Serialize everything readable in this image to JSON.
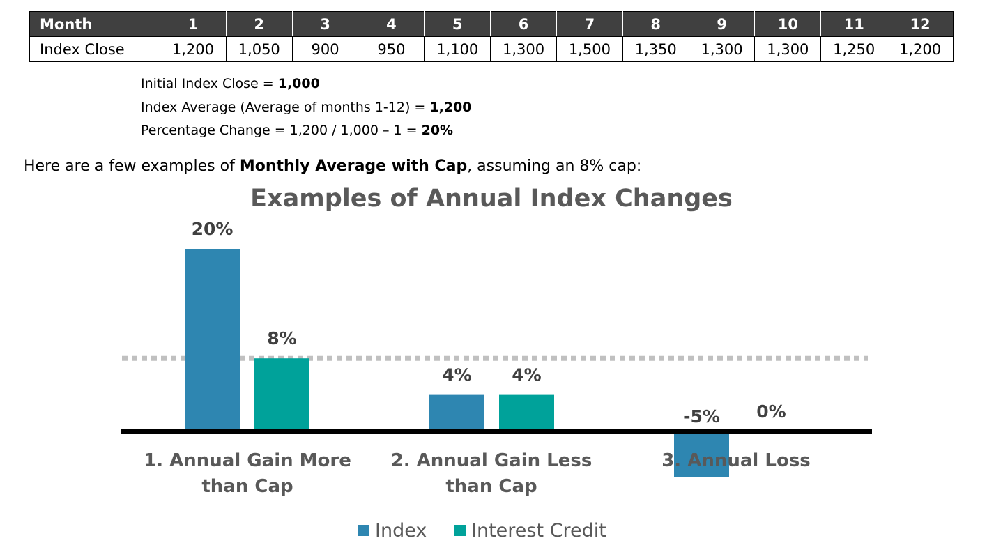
{
  "table": {
    "header_label": "Month",
    "months": [
      "1",
      "2",
      "3",
      "4",
      "5",
      "6",
      "7",
      "8",
      "9",
      "10",
      "11",
      "12"
    ],
    "row_label": "Index Close",
    "closes": [
      "1,200",
      "1,050",
      "900",
      "950",
      "1,100",
      "1,300",
      "1,500",
      "1,350",
      "1,300",
      "1,300",
      "1,250",
      "1,200"
    ]
  },
  "calc": {
    "line1_text": "Initial Index Close = ",
    "line1_value": "1,000",
    "line2_text": "Index Average (Average of months 1-12) = ",
    "line2_value": "1,200",
    "line3_text": "Percentage Change = 1,200 / 1,000 – 1 = ",
    "line3_value": "20%"
  },
  "intro": {
    "before": "Here are a few examples of ",
    "bold": "Monthly Average with Cap",
    "after": ", assuming an 8% cap:"
  },
  "chart_data": {
    "type": "bar",
    "title": "Examples of Annual Index Changes",
    "categories": [
      [
        "1. Annual Gain More",
        "than Cap"
      ],
      [
        "2. Annual Gain Less",
        "than Cap"
      ],
      [
        "3. Annual Loss"
      ]
    ],
    "series": [
      {
        "name": "Index",
        "color": "#2e86b1",
        "values": [
          20,
          4,
          -5
        ],
        "labels": [
          "20%",
          "4%",
          "-5%"
        ]
      },
      {
        "name": "Interest Credit",
        "color": "#00a29a",
        "values": [
          8,
          4,
          0
        ],
        "labels": [
          "8%",
          "4%",
          "0%"
        ]
      }
    ],
    "cap_line": 8,
    "ylim": [
      -6,
      22
    ],
    "grid": false,
    "legend_position": "bottom",
    "colors": {
      "title": "#595959",
      "labels": "#404040",
      "axis": "#000000",
      "cap_line": "#c0c0c0"
    }
  }
}
